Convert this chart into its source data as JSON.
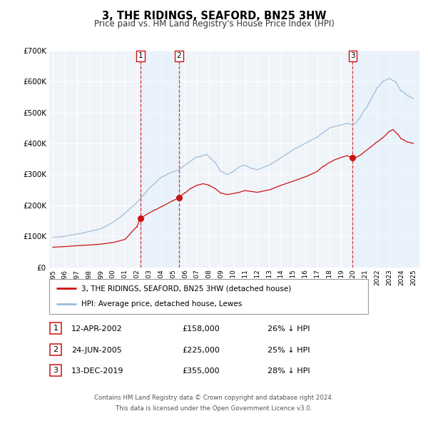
{
  "title": "3, THE RIDINGS, SEAFORD, BN25 3HW",
  "subtitle": "Price paid vs. HM Land Registry's House Price Index (HPI)",
  "ylim": [
    0,
    700000
  ],
  "yticks": [
    0,
    100000,
    200000,
    300000,
    400000,
    500000,
    600000,
    700000
  ],
  "xlim_start": 1994.7,
  "xlim_end": 2025.5,
  "hpi_color": "#99bbdd",
  "price_color": "#cc1111",
  "shading_color": "#ddeeff",
  "dashed_color": "#cc1111",
  "transactions": [
    {
      "num": 1,
      "date_label": "12-APR-2002",
      "date_x": 2002.28,
      "price": 158000,
      "pct": "26%"
    },
    {
      "num": 2,
      "date_label": "24-JUN-2005",
      "date_x": 2005.48,
      "price": 225000,
      "pct": "25%"
    },
    {
      "num": 3,
      "date_label": "13-DEC-2019",
      "date_x": 2019.95,
      "price": 355000,
      "pct": "28%"
    }
  ],
  "legend_label_price": "3, THE RIDINGS, SEAFORD, BN25 3HW (detached house)",
  "legend_label_hpi": "HPI: Average price, detached house, Lewes",
  "footnote_line1": "Contains HM Land Registry data © Crown copyright and database right 2024.",
  "footnote_line2": "This data is licensed under the Open Government Licence v3.0.",
  "background_color": "#ffffff",
  "plot_bg_color": "#f0f4f8"
}
